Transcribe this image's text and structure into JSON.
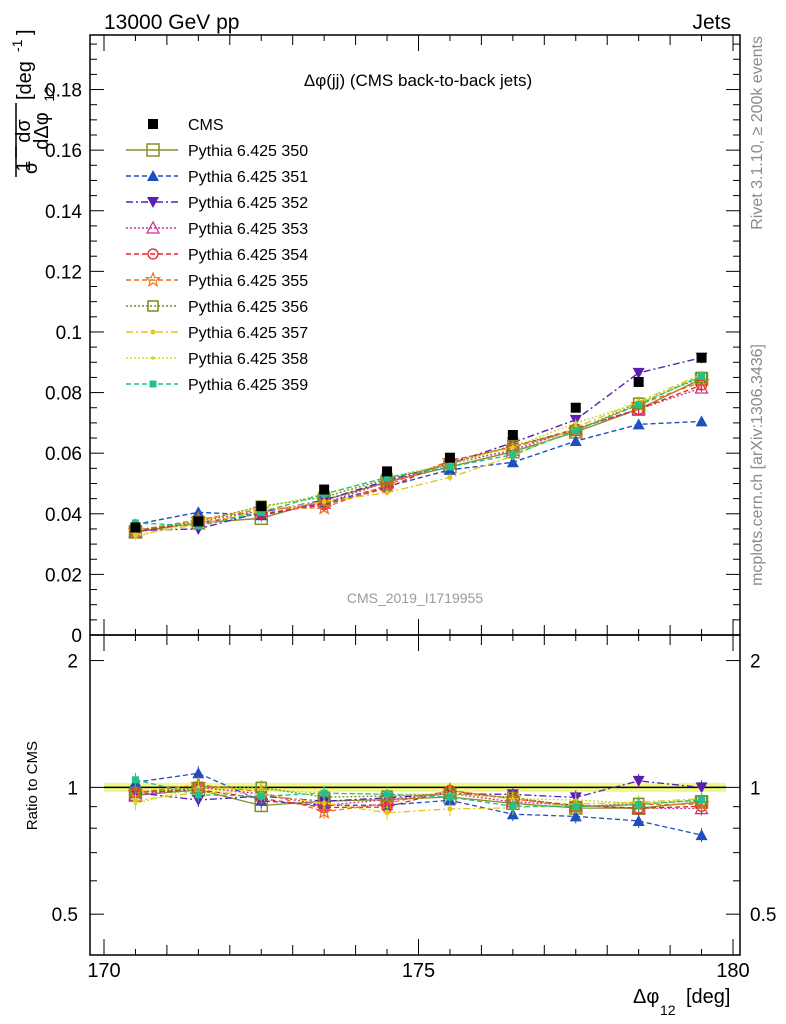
{
  "header": {
    "left": "13000 GeV pp",
    "right": "Jets"
  },
  "side_text": {
    "rivet": "Rivet 3.1.10, ≥ 200k events",
    "mcplots": "mcplots.cern.ch [arXiv:1306.3436]"
  },
  "chart_data": {
    "type": "line",
    "title": "Δφ(jj) (CMS back-to-back jets)",
    "watermark": "CMS_2019_I1719955",
    "xlabel": "Δφ",
    "xlabel_sub": "12",
    "xlabel_unit": "[deg]",
    "ylabel": {
      "frac_num": "1",
      "frac_den": "σ",
      "dnum": "dσ",
      "dden": "dΔφ",
      "dden_sub": "12",
      "unit": "[deg",
      "unit_sup": "-1",
      "unit_close": "]"
    },
    "ratio_ylabel": "Ratio to CMS",
    "xlim": [
      170,
      180
    ],
    "ylim": [
      0,
      0.198
    ],
    "ratio_ylim": [
      0.4,
      2.3
    ],
    "ratio_log_scale": true,
    "x_ticks": [
      "170",
      "175",
      "180"
    ],
    "y_ticks": [
      "0",
      "0.02",
      "0.04",
      "0.06",
      "0.08",
      "0.1",
      "0.12",
      "0.14",
      "0.16",
      "0.18"
    ],
    "ratio_ticks": [
      "0.5",
      "1",
      "2"
    ],
    "legend_position": "top-left",
    "x": [
      170.5,
      171.5,
      172.5,
      173.5,
      174.5,
      175.5,
      176.5,
      177.5,
      178.5,
      179.5
    ],
    "data": {
      "name": "CMS",
      "values": [
        0.0355,
        0.0375,
        0.0425,
        0.048,
        0.054,
        0.0585,
        0.066,
        0.075,
        0.0835,
        0.0915
      ]
    },
    "series": [
      {
        "name": "Pythia 6.425 350",
        "color": "#8c8c2a",
        "marker": "square-open",
        "dash": "solid",
        "values": [
          0.034,
          0.037,
          0.0385,
          0.0445,
          0.0505,
          0.0555,
          0.0605,
          0.067,
          0.0745,
          0.0845
        ]
      },
      {
        "name": "Pythia 6.425 351",
        "color": "#1f4fbf",
        "marker": "triangle-up",
        "dash": "dashed",
        "values": [
          0.0365,
          0.0405,
          0.0395,
          0.0435,
          0.049,
          0.0545,
          0.057,
          0.064,
          0.0695,
          0.0705
        ]
      },
      {
        "name": "Pythia 6.425 352",
        "color": "#5a1fb0",
        "marker": "triangle-down",
        "dash": "dashdot",
        "values": [
          0.0345,
          0.035,
          0.0405,
          0.0445,
          0.051,
          0.0565,
          0.0635,
          0.071,
          0.0865,
          0.0915
        ]
      },
      {
        "name": "Pythia 6.425 353",
        "color": "#cc3399",
        "marker": "triangle-up-open",
        "dash": "dotted",
        "values": [
          0.034,
          0.0375,
          0.041,
          0.0435,
          0.0505,
          0.0565,
          0.061,
          0.068,
          0.0745,
          0.0815
        ]
      },
      {
        "name": "Pythia 6.425 354",
        "color": "#e52222",
        "marker": "circle-open",
        "dash": "dashed",
        "values": [
          0.0345,
          0.037,
          0.04,
          0.043,
          0.0485,
          0.0575,
          0.062,
          0.068,
          0.0745,
          0.0825
        ]
      },
      {
        "name": "Pythia 6.425 355",
        "color": "#ee6f1a",
        "marker": "star-open",
        "dash": "dashed",
        "values": [
          0.0345,
          0.038,
          0.0415,
          0.042,
          0.0495,
          0.0575,
          0.062,
          0.0675,
          0.076,
          0.0835
        ]
      },
      {
        "name": "Pythia 6.425 356",
        "color": "#7a8a1a",
        "marker": "square-open-small",
        "dash": "dotted",
        "values": [
          0.0345,
          0.0375,
          0.0425,
          0.0455,
          0.0515,
          0.0565,
          0.0625,
          0.0675,
          0.0765,
          0.085
        ]
      },
      {
        "name": "Pythia 6.425 357",
        "color": "#e5c51a",
        "marker": "dot",
        "dash": "dashdot",
        "values": [
          0.033,
          0.0365,
          0.041,
          0.044,
          0.047,
          0.052,
          0.059,
          0.0685,
          0.077,
          0.086
        ]
      },
      {
        "name": "Pythia 6.425 358",
        "color": "#c8e022",
        "marker": "dot-small",
        "dash": "dotted",
        "values": [
          0.0325,
          0.0375,
          0.042,
          0.0465,
          0.052,
          0.0565,
          0.062,
          0.07,
          0.0765,
          0.0855
        ]
      },
      {
        "name": "Pythia 6.425 359",
        "color": "#22c28c",
        "marker": "square-filled-small",
        "dash": "dashed",
        "values": [
          0.037,
          0.036,
          0.0405,
          0.0465,
          0.052,
          0.0555,
          0.0595,
          0.0675,
          0.076,
          0.0855
        ]
      }
    ]
  }
}
